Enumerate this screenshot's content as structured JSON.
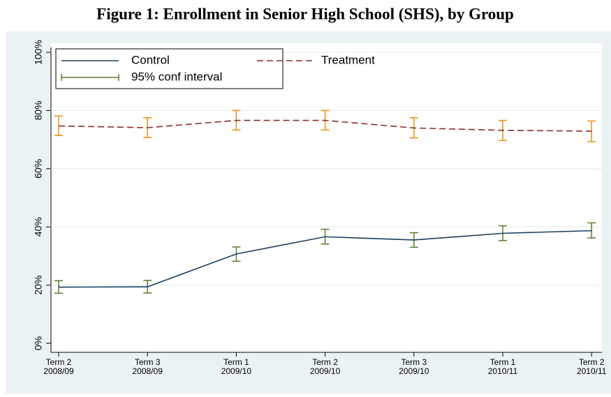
{
  "chart_data": {
    "type": "line",
    "title": "Figure 1: Enrollment in Senior High School (SHS), by Group",
    "categories": [
      [
        "Term 2",
        "2008/09"
      ],
      [
        "Term 3",
        "2008/09"
      ],
      [
        "Term 1",
        "2009/10"
      ],
      [
        "Term 2",
        "2009/10"
      ],
      [
        "Term 3",
        "2009/10"
      ],
      [
        "Term 1",
        "2010/11"
      ],
      [
        "Term 2",
        "2010/11"
      ]
    ],
    "series": [
      {
        "name": "Control",
        "color": "#1a3f5e",
        "dash": false,
        "ci_color": "#5b7a2e",
        "values": [
          19.3,
          19.4,
          30.7,
          36.6,
          35.5,
          37.8,
          38.7
        ],
        "ci_lower": [
          17.2,
          17.3,
          28.2,
          34.1,
          33.0,
          35.3,
          36.2
        ],
        "ci_upper": [
          21.5,
          21.6,
          33.1,
          39.2,
          38.0,
          40.4,
          41.4
        ]
      },
      {
        "name": "Treatment",
        "color": "#8b2a2a",
        "dash": true,
        "ci_color": "#e8900c",
        "values": [
          74.7,
          74.1,
          76.6,
          76.6,
          74.0,
          73.2,
          72.9
        ],
        "ci_lower": [
          71.4,
          70.7,
          73.3,
          73.3,
          70.6,
          69.7,
          69.3
        ],
        "ci_upper": [
          78.1,
          77.5,
          80.0,
          80.0,
          77.5,
          76.6,
          76.4
        ]
      }
    ],
    "ci_name": "95% conf interval",
    "ylim": [
      0,
      100
    ],
    "yticks": [
      {
        "value": 0,
        "label": "0%"
      },
      {
        "value": 20,
        "label": "20%"
      },
      {
        "value": 40,
        "label": "40%"
      },
      {
        "value": 60,
        "label": "60%"
      },
      {
        "value": 80,
        "label": "80%"
      },
      {
        "value": 100,
        "label": "100%"
      }
    ],
    "grid": true,
    "legend": "top"
  }
}
